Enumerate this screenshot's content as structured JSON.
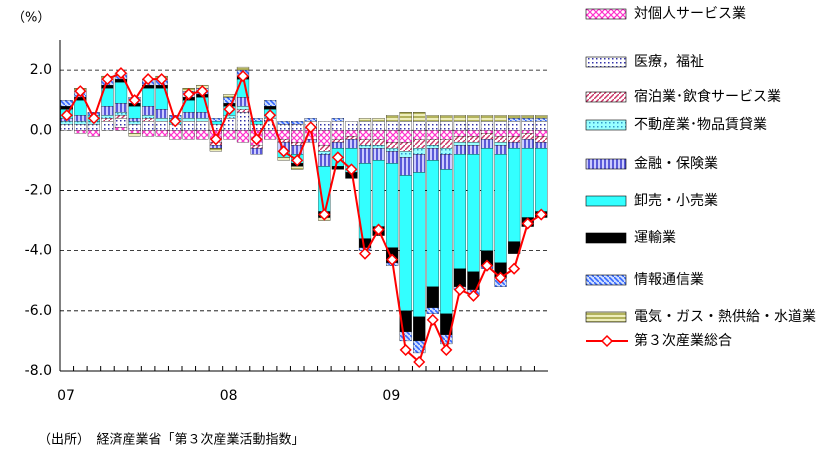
{
  "chart_data": {
    "type": "stacked-bar-line",
    "y_axis_label": "（%）",
    "source": "（出所）　経済産業省「第３次産業活動指数」",
    "categories": [
      "07",
      null,
      null,
      null,
      null,
      null,
      null,
      null,
      null,
      null,
      null,
      null,
      "08",
      null,
      null,
      null,
      null,
      null,
      null,
      null,
      null,
      null,
      null,
      null,
      "09",
      null,
      null,
      null,
      null,
      null,
      null,
      null,
      null,
      null,
      null,
      null
    ],
    "ylim": [
      -8,
      3
    ],
    "yticks": [
      {
        "value": 2,
        "label": "2.0"
      },
      {
        "value": 0,
        "label": "0.0"
      },
      {
        "value": -2,
        "label": "-2.0"
      },
      {
        "value": -4,
        "label": "-4.0"
      },
      {
        "value": -6,
        "label": "-6.0"
      },
      {
        "value": -8,
        "label": "-8.0"
      }
    ],
    "grid": true,
    "series": [
      {
        "name": "対個人サービス業",
        "color": "#ff33cc",
        "values": [
          0.0,
          -0.1,
          -0.2,
          0.0,
          0.1,
          -0.1,
          -0.2,
          -0.2,
          -0.3,
          -0.3,
          -0.3,
          -0.4,
          -0.3,
          -0.4,
          -0.5,
          -0.3,
          -0.3,
          -0.4,
          -0.3,
          -0.5,
          -0.3,
          -0.2,
          -0.3,
          -0.3,
          -0.4,
          -0.4,
          -0.3,
          -0.3,
          -0.3,
          -0.2,
          -0.2,
          -0.1,
          -0.2,
          -0.2,
          -0.1,
          -0.2
        ]
      },
      {
        "name": "医療，福祉",
        "color": "#3333aa",
        "values": [
          0.2,
          0.2,
          0.2,
          0.3,
          0.3,
          0.2,
          0.3,
          0.3,
          0.2,
          0.3,
          0.3,
          0.2,
          0.4,
          0.6,
          0.2,
          0.4,
          0.2,
          0.2,
          0.3,
          0.3,
          0.3,
          0.3,
          0.3,
          0.3,
          0.3,
          0.3,
          0.3,
          0.3,
          0.3,
          0.3,
          0.3,
          0.3,
          0.3,
          0.3,
          0.3,
          0.3
        ]
      },
      {
        "name": "宿泊業･飲食サービス業",
        "color": "#cc3366",
        "values": [
          0.0,
          0.0,
          0.0,
          0.1,
          0.1,
          0.0,
          0.1,
          0.0,
          0.0,
          0.0,
          0.0,
          -0.1,
          0.0,
          0.1,
          -0.1,
          0.0,
          -0.1,
          -0.1,
          0.0,
          -0.2,
          -0.1,
          -0.1,
          -0.2,
          -0.2,
          -0.2,
          -0.3,
          -0.3,
          -0.2,
          -0.3,
          -0.2,
          -0.2,
          -0.2,
          -0.2,
          -0.2,
          -0.2,
          -0.2
        ]
      },
      {
        "name": "不動産業･物品賃貸業",
        "color": "#3399cc",
        "values": [
          0.1,
          0.1,
          0.1,
          0.1,
          0.1,
          0.1,
          0.1,
          0.1,
          0.0,
          0.1,
          0.1,
          0.0,
          0.1,
          0.1,
          0.0,
          0.1,
          0.0,
          0.0,
          0.0,
          -0.1,
          0.0,
          0.0,
          -0.1,
          -0.1,
          -0.1,
          -0.2,
          -0.2,
          -0.1,
          -0.2,
          -0.1,
          -0.1,
          0.0,
          -0.1,
          0.0,
          0.0,
          0.0
        ]
      },
      {
        "name": "金融・保険業",
        "color": "#3333cc",
        "values": [
          0.1,
          0.2,
          0.0,
          0.3,
          0.3,
          0.1,
          0.3,
          0.3,
          0.0,
          0.2,
          0.2,
          -0.1,
          0.0,
          0.3,
          -0.2,
          0.0,
          -0.3,
          -0.3,
          -0.1,
          -0.4,
          -0.2,
          -0.3,
          -0.5,
          -0.4,
          -0.4,
          -0.6,
          -0.6,
          -0.4,
          -0.5,
          -0.3,
          -0.3,
          -0.3,
          -0.3,
          -0.2,
          -0.3,
          -0.2
        ]
      },
      {
        "name": "卸売・小売業",
        "color": "#33ffff",
        "values": [
          0.3,
          0.5,
          0.2,
          0.6,
          0.7,
          0.4,
          0.6,
          0.7,
          0.2,
          0.4,
          0.5,
          0.1,
          0.3,
          0.6,
          0.1,
          0.2,
          -0.2,
          -0.3,
          0.0,
          -1.5,
          -0.6,
          -0.8,
          -2.5,
          -2.2,
          -2.8,
          -4.5,
          -4.8,
          -4.2,
          -4.8,
          -3.8,
          -3.9,
          -3.4,
          -3.6,
          -3.1,
          -2.3,
          -2.1
        ]
      },
      {
        "name": "運輸業",
        "color": "#000000",
        "values": [
          0.1,
          0.1,
          0.0,
          0.1,
          0.1,
          0.1,
          0.1,
          0.1,
          0.0,
          0.1,
          0.1,
          0.0,
          0.1,
          0.1,
          0.0,
          0.1,
          0.0,
          -0.1,
          0.0,
          -0.2,
          -0.1,
          -0.2,
          -0.3,
          -0.3,
          -0.5,
          -0.7,
          -0.8,
          -0.7,
          -0.7,
          -0.6,
          -0.6,
          -0.5,
          -0.5,
          -0.4,
          -0.3,
          -0.2
        ]
      },
      {
        "name": "情報通信業",
        "color": "#3366ff",
        "values": [
          0.2,
          0.2,
          0.1,
          0.2,
          0.2,
          0.2,
          0.2,
          0.2,
          0.1,
          0.2,
          0.2,
          0.1,
          0.2,
          0.2,
          0.1,
          0.2,
          0.1,
          0.1,
          0.1,
          0.0,
          0.1,
          0.0,
          -0.1,
          0.0,
          -0.1,
          -0.3,
          -0.4,
          -0.2,
          -0.3,
          -0.1,
          -0.2,
          -0.1,
          -0.3,
          0.1,
          0.1,
          0.1
        ]
      },
      {
        "name": "電気・ガス・熱供給・水道業",
        "color": "#999933",
        "values": [
          0.0,
          0.1,
          0.0,
          0.1,
          0.0,
          -0.1,
          0.0,
          0.1,
          0.0,
          0.1,
          0.1,
          -0.1,
          0.1,
          0.1,
          0.0,
          0.0,
          -0.1,
          -0.1,
          0.0,
          -0.1,
          0.0,
          0.0,
          0.1,
          0.1,
          0.2,
          0.3,
          0.3,
          0.2,
          0.2,
          0.2,
          0.2,
          0.2,
          0.2,
          0.1,
          0.1,
          0.1
        ]
      }
    ],
    "line": {
      "name": "第３次産業総合",
      "color": "#ff0000",
      "values": [
        0.5,
        1.3,
        0.4,
        1.7,
        1.9,
        1.0,
        1.7,
        1.7,
        0.3,
        1.2,
        1.3,
        -0.3,
        0.7,
        1.8,
        -0.3,
        0.5,
        -0.7,
        -1.0,
        0.1,
        -2.8,
        -0.9,
        -1.3,
        -4.1,
        -3.3,
        -4.3,
        -7.3,
        -7.7,
        -6.3,
        -7.3,
        -5.3,
        -5.5,
        -4.5,
        -4.9,
        -4.6,
        -3.1,
        -2.8
      ]
    }
  }
}
